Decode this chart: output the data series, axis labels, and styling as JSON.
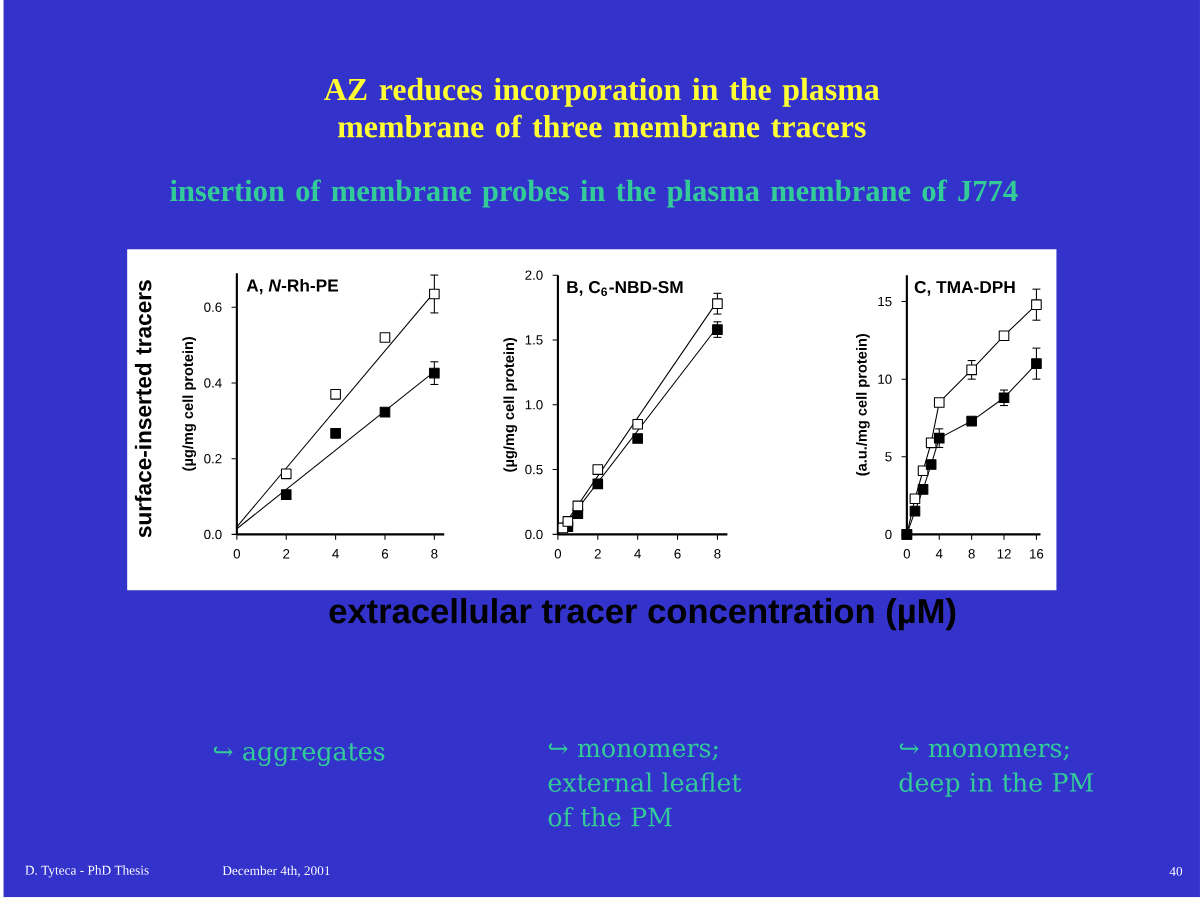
{
  "chart_data": [
    {
      "type": "scatter",
      "title": "A, *N*-Rh-PE",
      "ylabel": "(µg/mg cell protein)",
      "xlim": [
        0,
        8.4
      ],
      "ylim": [
        0,
        0.69
      ],
      "xticks": [
        0,
        2,
        4,
        6,
        8
      ],
      "yticks": [
        {
          "value": 0,
          "label": "0.0"
        },
        0.2,
        0.4,
        0.6
      ],
      "marker": "square",
      "series": [
        {
          "type": "line",
          "marker": "none",
          "color": "#000000",
          "x": [
            0,
            8
          ],
          "values": [
            0.02,
            0.64
          ]
        },
        {
          "type": "line",
          "marker": "none",
          "color": "#000000",
          "x": [
            0,
            8
          ],
          "values": [
            0.015,
            0.43
          ]
        },
        {
          "color": "#ffffff",
          "x": [
            2,
            4,
            6,
            8
          ],
          "values": [
            0.16,
            0.37,
            0.52,
            0.635
          ],
          "errors": [
            null,
            null,
            null,
            0.05
          ]
        },
        {
          "color": "#000000",
          "x": [
            2,
            4,
            6,
            8
          ],
          "values": [
            0.105,
            0.267,
            0.323,
            0.426
          ],
          "errors": [
            null,
            null,
            null,
            0.03
          ]
        }
      ],
      "annotations": [
        "AZ reduces incorporation in the plasma membrane of three membrane tracers",
        "insertion of membrane probes in the plasma membrane of J774",
        "surface-inserted tracers",
        "↪ aggregates",
        "D. Tyteca - PhD Thesis",
        "December 4th, 2001"
      ]
    },
    {
      "type": "scatter",
      "title": "B, C$_{6}$-NBD-SM",
      "xlabel": "extracellular tracer concentration (µM)",
      "ylabel": "(µg/mg cell protein)",
      "xlim": [
        0,
        8.5
      ],
      "ylim": [
        0,
        2.0
      ],
      "xticks": [
        0,
        2,
        4,
        6,
        8
      ],
      "yticks": [
        {
          "value": 0,
          "label": "0.0"
        },
        0.5,
        {
          "value": 1,
          "label": "1.0"
        },
        1.5,
        {
          "value": 2,
          "label": "2.0"
        }
      ],
      "marker": "square",
      "series": [
        {
          "type": "line",
          "marker": "none",
          "color": "#000000",
          "x": [
            0,
            8
          ],
          "values": [
            0,
            1.8
          ]
        },
        {
          "type": "line",
          "marker": "none",
          "color": "#000000",
          "x": [
            0,
            8
          ],
          "values": [
            0,
            1.6
          ]
        },
        {
          "color": "#000000",
          "x": [
            0.5,
            1,
            2,
            4,
            8
          ],
          "values": [
            0.06,
            0.16,
            0.39,
            0.74,
            1.58
          ],
          "errors": [
            null,
            null,
            null,
            null,
            0.06
          ]
        },
        {
          "color": "#ffffff",
          "x": [
            0.25,
            0.5,
            1,
            2,
            4,
            8
          ],
          "values": [
            0.05,
            0.1,
            0.22,
            0.5,
            0.85,
            1.78
          ],
          "errors": [
            null,
            null,
            null,
            null,
            null,
            0.08
          ]
        }
      ],
      "annotations": [
        "↪ monomers; external leaflet of the PM"
      ]
    },
    {
      "type": "line",
      "title": "C, TMA-DPH",
      "ylabel": "(a.u./mg cell protein)",
      "xlim": [
        0,
        16.5
      ],
      "ylim": [
        0,
        16.7
      ],
      "xticks": [
        0,
        4,
        8,
        12,
        16
      ],
      "yticks": [
        0,
        5,
        10,
        15
      ],
      "marker": "square",
      "series": [
        {
          "color": "#ffffff",
          "x": [
            0,
            1,
            2,
            3,
            4,
            8,
            12,
            16
          ],
          "values": [
            0,
            2.3,
            4.1,
            5.9,
            8.5,
            10.6,
            12.8,
            14.8
          ],
          "errors": [
            null,
            null,
            null,
            null,
            null,
            0.6,
            null,
            1.0
          ]
        },
        {
          "color": "#000000",
          "x": [
            0,
            1,
            2,
            3,
            4,
            8,
            12,
            16
          ],
          "values": [
            0,
            1.5,
            2.9,
            4.5,
            6.2,
            7.3,
            8.8,
            11.0
          ],
          "errors": [
            null,
            null,
            null,
            null,
            0.6,
            null,
            0.5,
            1.0
          ]
        }
      ],
      "annotations": [
        "↪ monomers; deep in the PM",
        "40"
      ]
    }
  ]
}
